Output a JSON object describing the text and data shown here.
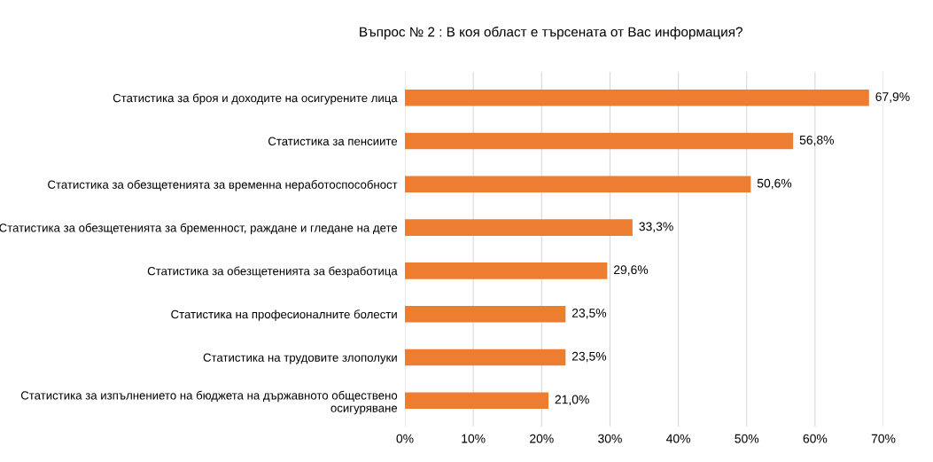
{
  "chart_data": {
    "type": "bar",
    "orientation": "horizontal",
    "title": "Въпрос № 2 : В коя област е търсената от Вас информация?",
    "categories": [
      "Статистика за броя и доходите на осигурените лица",
      "Статистика за пенсиите",
      "Статистика за обезщетенията за временна неработоспособност",
      "Статистика за обезщетенията за бременност, раждане и гледане на дете",
      "Статистика за обезщетенията за безработица",
      "Статистика на професионалните болести",
      "Статистика на трудовите злополуки",
      "Статистика за изпълнението на бюджета на държавното обществено\nосигуряване"
    ],
    "values": [
      67.9,
      56.8,
      50.6,
      33.3,
      29.6,
      23.5,
      23.5,
      21.0
    ],
    "value_labels": [
      "67,9%",
      "56,8%",
      "50,6%",
      "33,3%",
      "29,6%",
      "23,5%",
      "23,5%",
      "21,0%"
    ],
    "color": "#ed7d31",
    "xlim": [
      0,
      70
    ],
    "xticks": [
      {
        "value": 0,
        "label": "0%"
      },
      {
        "value": 10,
        "label": "10%"
      },
      {
        "value": 20,
        "label": "20%"
      },
      {
        "value": 30,
        "label": "30%"
      },
      {
        "value": 40,
        "label": "40%"
      },
      {
        "value": 50,
        "label": "50%"
      },
      {
        "value": 60,
        "label": "60%"
      },
      {
        "value": 70,
        "label": "70%"
      }
    ],
    "grid": "x"
  }
}
